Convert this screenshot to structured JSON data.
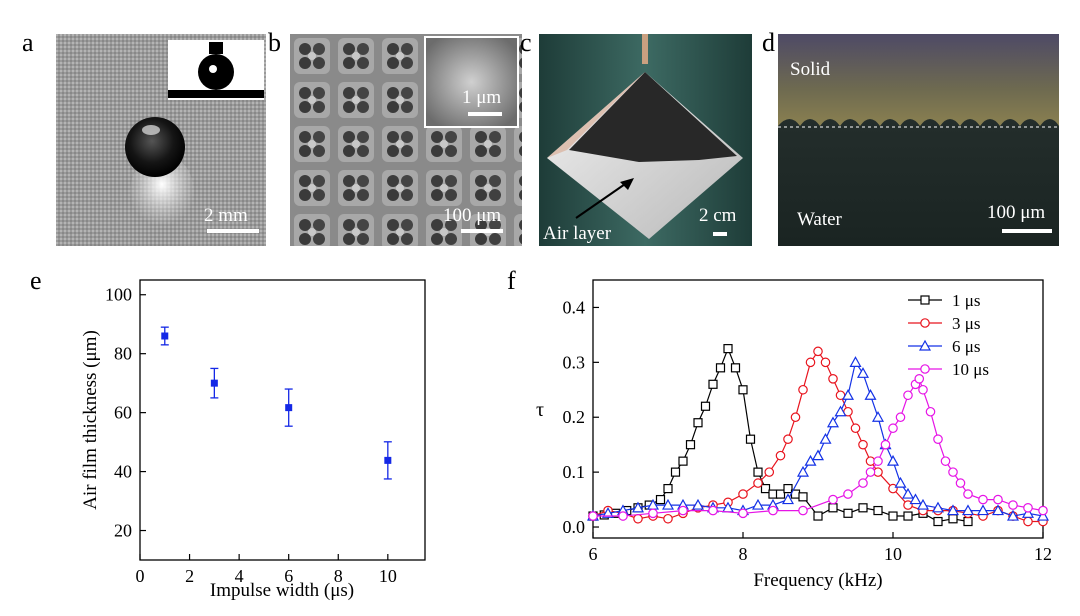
{
  "panels": {
    "a": {
      "letter": "a",
      "scale_label": "2 mm"
    },
    "b": {
      "letter": "b",
      "scale_label": "100 μm",
      "inset_scale_label": "1 μm"
    },
    "c": {
      "letter": "c",
      "scale_label": "2 cm",
      "annotation": "Air layer"
    },
    "d": {
      "letter": "d",
      "scale_label": "100 μm",
      "top_label": "Solid",
      "bottom_label": "Water"
    },
    "e": {
      "letter": "e"
    },
    "f": {
      "letter": "f"
    }
  },
  "colors": {
    "blue": "#1428e6",
    "black": "#000000",
    "red": "#e8141e",
    "tri_blue": "#1432e6",
    "magenta": "#e614e6"
  },
  "chart_data": [
    {
      "id": "e",
      "type": "scatter",
      "xlabel": "Impulse width (μs)",
      "ylabel": "Air film thickness (μm)",
      "xlim": [
        0,
        11.5
      ],
      "ylim": [
        10,
        105
      ],
      "xticks": [
        0,
        2,
        4,
        6,
        8,
        10
      ],
      "yticks": [
        20,
        40,
        60,
        80,
        100
      ],
      "series": [
        {
          "name": "Air film thickness",
          "marker": "filled-square",
          "color": "#1428e6",
          "x": [
            1,
            3,
            6,
            10
          ],
          "y": [
            86,
            70,
            61.7,
            43.8
          ],
          "err": [
            3,
            5,
            6.3,
            6.3
          ]
        }
      ]
    },
    {
      "id": "f",
      "type": "line",
      "xlabel": "Frequency (kHz)",
      "ylabel": "τ",
      "xlim": [
        6,
        12
      ],
      "ylim": [
        -0.02,
        0.45
      ],
      "xticks": [
        6,
        8,
        10,
        12
      ],
      "yticks": [
        0.0,
        0.1,
        0.2,
        0.3,
        0.4
      ],
      "legend_position": "top-right",
      "series": [
        {
          "name": "1 μs",
          "marker": "square",
          "color": "#000000",
          "x": [
            6.0,
            6.15,
            6.3,
            6.45,
            6.6,
            6.75,
            6.9,
            7.0,
            7.1,
            7.2,
            7.3,
            7.4,
            7.5,
            7.6,
            7.7,
            7.8,
            7.9,
            8.0,
            8.1,
            8.2,
            8.3,
            8.4,
            8.5,
            8.6,
            8.7,
            8.8,
            9.0,
            9.2,
            9.4,
            9.6,
            9.8,
            10.0,
            10.2,
            10.4,
            10.6,
            10.8,
            11.0
          ],
          "y": [
            0.02,
            0.022,
            0.025,
            0.03,
            0.035,
            0.04,
            0.05,
            0.07,
            0.1,
            0.12,
            0.15,
            0.19,
            0.22,
            0.26,
            0.29,
            0.325,
            0.29,
            0.25,
            0.16,
            0.1,
            0.07,
            0.06,
            0.06,
            0.07,
            0.06,
            0.055,
            0.02,
            0.035,
            0.025,
            0.035,
            0.03,
            0.02,
            0.02,
            0.025,
            0.01,
            0.015,
            0.01
          ]
        },
        {
          "name": "3 μs",
          "marker": "circle",
          "color": "#e8141e",
          "x": [
            6.0,
            6.2,
            6.4,
            6.6,
            6.8,
            7.0,
            7.2,
            7.4,
            7.6,
            7.8,
            8.0,
            8.2,
            8.35,
            8.5,
            8.6,
            8.7,
            8.8,
            8.9,
            9.0,
            9.1,
            9.2,
            9.3,
            9.4,
            9.5,
            9.6,
            9.7,
            9.8,
            10.0,
            10.2,
            10.4,
            10.6,
            10.8,
            11.0,
            11.2,
            11.4,
            11.6,
            11.8,
            12.0
          ],
          "y": [
            0.02,
            0.03,
            0.025,
            0.015,
            0.02,
            0.015,
            0.025,
            0.035,
            0.04,
            0.045,
            0.06,
            0.08,
            0.1,
            0.13,
            0.16,
            0.2,
            0.25,
            0.3,
            0.32,
            0.3,
            0.27,
            0.24,
            0.21,
            0.18,
            0.15,
            0.12,
            0.1,
            0.07,
            0.04,
            0.03,
            0.03,
            0.03,
            0.025,
            0.02,
            0.03,
            0.02,
            0.01,
            0.01
          ]
        },
        {
          "name": "6 μs",
          "marker": "triangle",
          "color": "#1432e6",
          "x": [
            6.0,
            6.2,
            6.4,
            6.6,
            6.8,
            7.0,
            7.2,
            7.4,
            7.6,
            7.8,
            8.0,
            8.2,
            8.4,
            8.6,
            8.8,
            8.9,
            9.0,
            9.1,
            9.2,
            9.3,
            9.4,
            9.5,
            9.6,
            9.7,
            9.8,
            9.9,
            10.0,
            10.1,
            10.2,
            10.3,
            10.4,
            10.6,
            10.8,
            11.0,
            11.2,
            11.4,
            11.6,
            11.8,
            12.0
          ],
          "y": [
            0.02,
            0.025,
            0.03,
            0.035,
            0.04,
            0.04,
            0.04,
            0.04,
            0.035,
            0.035,
            0.03,
            0.04,
            0.04,
            0.05,
            0.1,
            0.12,
            0.13,
            0.16,
            0.19,
            0.21,
            0.24,
            0.3,
            0.28,
            0.24,
            0.2,
            0.15,
            0.12,
            0.08,
            0.06,
            0.05,
            0.04,
            0.035,
            0.03,
            0.03,
            0.03,
            0.03,
            0.02,
            0.025,
            0.02
          ]
        },
        {
          "name": "10 μs",
          "marker": "circle",
          "color": "#e614e6",
          "x": [
            6.0,
            6.4,
            6.8,
            7.2,
            7.6,
            8.0,
            8.4,
            8.8,
            9.2,
            9.4,
            9.6,
            9.7,
            9.8,
            9.9,
            10.0,
            10.1,
            10.2,
            10.3,
            10.35,
            10.4,
            10.5,
            10.6,
            10.7,
            10.8,
            10.9,
            11.0,
            11.2,
            11.4,
            11.6,
            11.8,
            12.0
          ],
          "y": [
            0.02,
            0.02,
            0.025,
            0.03,
            0.03,
            0.025,
            0.03,
            0.03,
            0.05,
            0.06,
            0.08,
            0.1,
            0.12,
            0.15,
            0.18,
            0.2,
            0.24,
            0.26,
            0.27,
            0.25,
            0.21,
            0.16,
            0.12,
            0.1,
            0.08,
            0.06,
            0.05,
            0.05,
            0.04,
            0.035,
            0.03
          ]
        }
      ]
    }
  ]
}
